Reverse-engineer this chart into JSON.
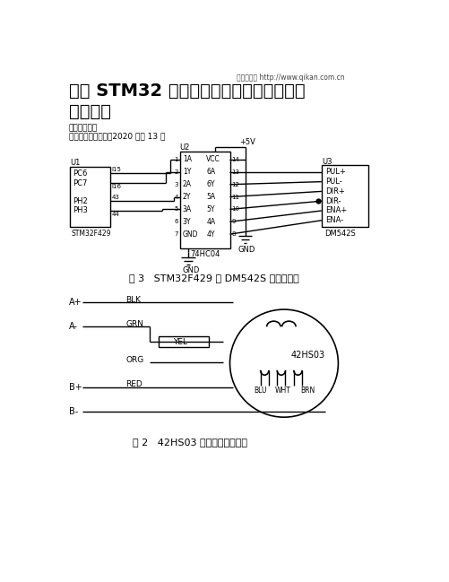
{
  "title_line1": "基于 STM32 的步进电机运动状态闭环检测",
  "title_line2": "系统设计",
  "watermark": "龙源期刊网 http://www.qikan.com.cn",
  "author": "作者：胡向东",
  "source": "来源：《科技视界》2020 年第 13 期",
  "fig3_caption": "图 3   STM32F429 与 DM542S 的连接电路",
  "fig2_caption": "图 2   42HS03 相绕组的串联方式",
  "bg_color": "#ffffff",
  "line_color": "#000000",
  "text_color": "#000000"
}
